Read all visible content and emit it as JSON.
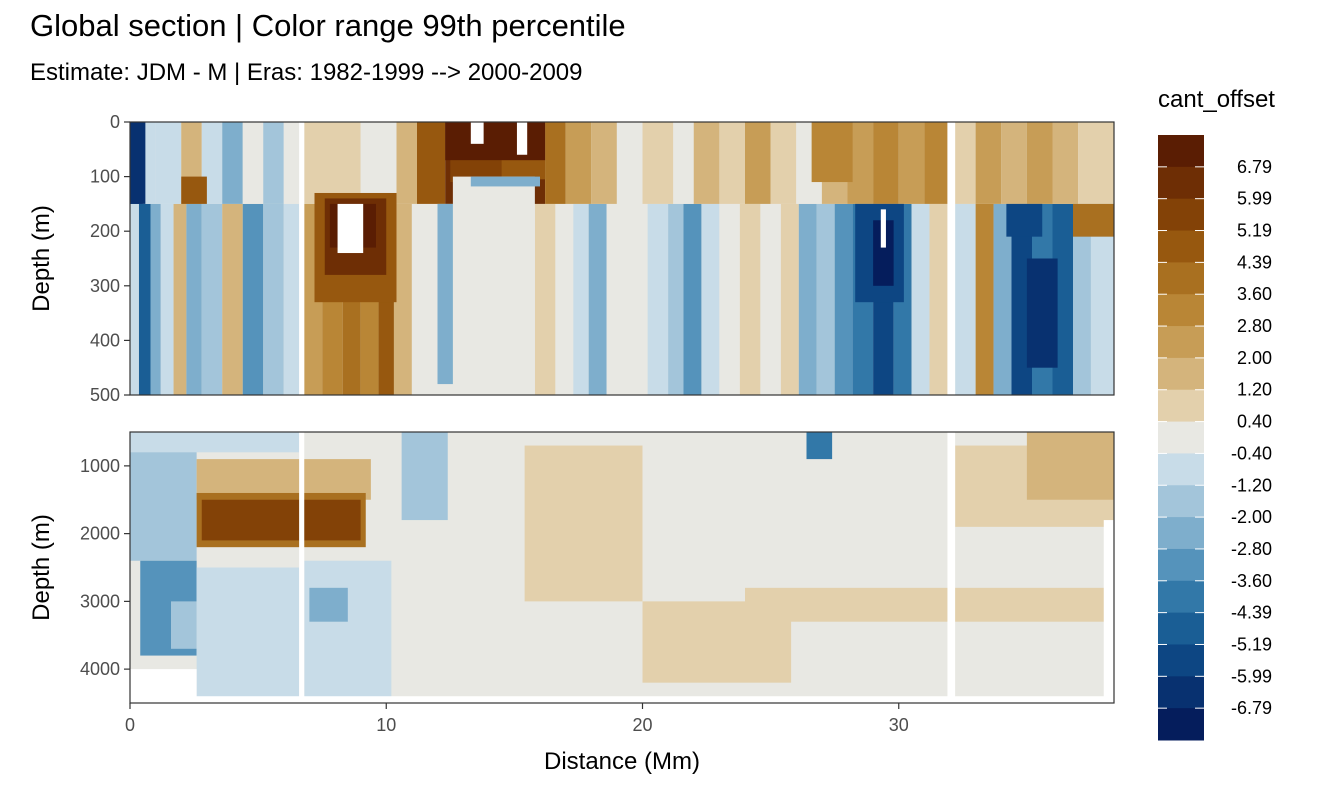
{
  "chart_data": {
    "type": "heatmap",
    "title": "Global section | Color range 99th percentile",
    "subtitle": "Estimate: JDM - M | Eras: 1982-1999 --> 2000-2009",
    "xlabel": "Distance (Mm)",
    "x_ticks": [
      "0",
      "10",
      "20",
      "30"
    ],
    "x_tick_values": [
      0,
      10,
      20,
      30
    ],
    "xlim": [
      0,
      38.4
    ],
    "legend_title": "cant_offset",
    "legend_labels": [
      "6.79",
      "5.99",
      "5.19",
      "4.39",
      "3.60",
      "2.80",
      "2.00",
      "1.20",
      "0.40",
      "-0.40",
      "-1.20",
      "-2.00",
      "-2.80",
      "-3.60",
      "-4.39",
      "-5.19",
      "-5.99",
      "-6.79"
    ],
    "colors": [
      "#5a1d03",
      "#6e2e05",
      "#834207",
      "#97580f",
      "#a97020",
      "#b98636",
      "#c79d56",
      "#d4b47c",
      "#e3d0ac",
      "#e8e8e3",
      "#c8dce8",
      "#a3c5da",
      "#7eaecc",
      "#5593bb",
      "#3278a8",
      "#1a5e95",
      "#0d4683",
      "#083170",
      "#051d5c"
    ],
    "panels": [
      {
        "name": "upper",
        "ylabel": "Depth (m)",
        "ylim": [
          0,
          500
        ],
        "y_ticks": [
          "0",
          "100",
          "200",
          "300",
          "400",
          "500"
        ],
        "y_tick_values": [
          0,
          100,
          200,
          300,
          400,
          500
        ]
      },
      {
        "name": "lower",
        "ylabel": "Depth (m)",
        "ylim": [
          500,
          4500
        ],
        "y_ticks": [
          "1000",
          "2000",
          "3000",
          "4000"
        ],
        "y_tick_values": [
          1000,
          2000,
          3000,
          4000
        ]
      }
    ]
  }
}
